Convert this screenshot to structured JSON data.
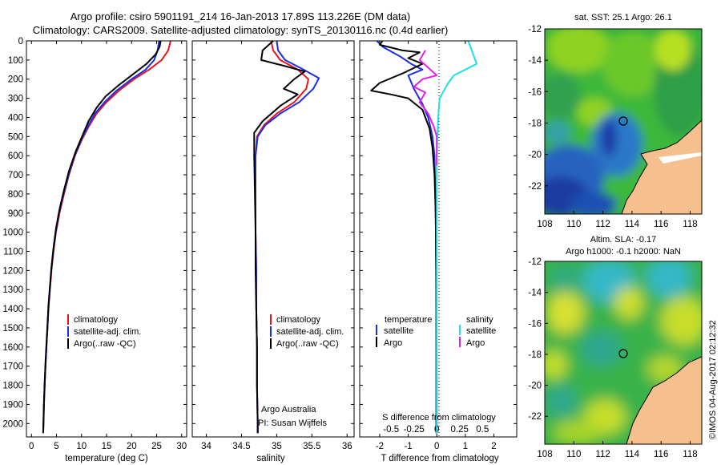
{
  "title": {
    "line1": "Argo profile: csiro 5901191_214 16-Jan-2013 17.89S 113.226E (DM data)",
    "line2": "Climatology: CARS2009. Satellite-adjusted climatology: synTS_20130116.nc (0.4d earlier)"
  },
  "colors": {
    "climatology": "#e8141b",
    "satellite": "#1a2ee8",
    "argo": "#000000",
    "sat_salinity": "#1ee0e8",
    "argo_salinity": "#e81ee8",
    "land": "#f5c08e"
  },
  "chart_data": [
    {
      "type": "line",
      "id": "temperature",
      "xlabel": "temperature (deg C)",
      "xlim": [
        -1,
        31
      ],
      "ylim": [
        2070,
        0
      ],
      "xticks": [
        0,
        5,
        10,
        15,
        20,
        25,
        30
      ],
      "yticks": [
        0,
        100,
        200,
        300,
        400,
        500,
        600,
        700,
        800,
        900,
        1000,
        1100,
        1200,
        1300,
        1400,
        1500,
        1600,
        1700,
        1800,
        1900,
        2000
      ],
      "legend": [
        "climatology",
        "satellite-adj. clim.",
        "Argo(..raw -QC)"
      ],
      "series": [
        {
          "name": "climatology",
          "color": "#e8141b",
          "points": [
            [
              27.8,
              0
            ],
            [
              27.3,
              50
            ],
            [
              26,
              100
            ],
            [
              23.5,
              150
            ],
            [
              20.5,
              200
            ],
            [
              17.5,
              260
            ],
            [
              15,
              320
            ],
            [
              13,
              380
            ],
            [
              11.4,
              450
            ],
            [
              10,
              520
            ],
            [
              8.7,
              600
            ],
            [
              7.5,
              700
            ],
            [
              6.5,
              800
            ],
            [
              5.6,
              900
            ],
            [
              4.9,
              1000
            ],
            [
              4.4,
              1100
            ],
            [
              4.0,
              1200
            ],
            [
              3.7,
              1300
            ],
            [
              3.4,
              1400
            ],
            [
              3.2,
              1500
            ],
            [
              3.0,
              1600
            ],
            [
              2.8,
              1700
            ],
            [
              2.65,
              1800
            ],
            [
              2.5,
              1900
            ],
            [
              2.4,
              2000
            ],
            [
              2.35,
              2050
            ]
          ]
        },
        {
          "name": "satellite-adj. clim.",
          "color": "#1a2ee8",
          "points": [
            [
              25.5,
              0
            ],
            [
              25.2,
              50
            ],
            [
              24.5,
              100
            ],
            [
              22.8,
              150
            ],
            [
              20,
              200
            ],
            [
              17,
              260
            ],
            [
              14.6,
              320
            ],
            [
              12.7,
              380
            ],
            [
              11.2,
              450
            ],
            [
              9.9,
              520
            ],
            [
              8.6,
              600
            ],
            [
              7.4,
              700
            ],
            [
              6.4,
              800
            ],
            [
              5.5,
              900
            ],
            [
              4.85,
              1000
            ],
            [
              4.35,
              1100
            ],
            [
              3.95,
              1200
            ],
            [
              3.65,
              1300
            ],
            [
              3.4,
              1400
            ],
            [
              3.2,
              1500
            ],
            [
              3.0,
              1600
            ],
            [
              2.8,
              1700
            ],
            [
              2.65,
              1800
            ],
            [
              2.5,
              1900
            ],
            [
              2.4,
              2000
            ],
            [
              2.35,
              2050
            ]
          ]
        },
        {
          "name": "Argo(..raw -QC)",
          "color": "#000000",
          "points": [
            [
              25.8,
              0
            ],
            [
              25.6,
              30
            ],
            [
              24.8,
              70
            ],
            [
              23,
              120
            ],
            [
              20.5,
              170
            ],
            [
              17.5,
              230
            ],
            [
              14.8,
              290
            ],
            [
              13,
              350
            ],
            [
              11.4,
              420
            ],
            [
              10.1,
              500
            ],
            [
              8.8,
              580
            ],
            [
              7.5,
              680
            ],
            [
              6.5,
              780
            ],
            [
              5.6,
              880
            ],
            [
              4.9,
              980
            ],
            [
              4.4,
              1080
            ],
            [
              4.0,
              1180
            ],
            [
              3.7,
              1280
            ],
            [
              3.4,
              1380
            ],
            [
              3.2,
              1480
            ],
            [
              3.0,
              1580
            ],
            [
              2.8,
              1680
            ],
            [
              2.65,
              1780
            ],
            [
              2.5,
              1880
            ],
            [
              2.4,
              1980
            ],
            [
              2.35,
              2050
            ]
          ]
        }
      ]
    },
    {
      "type": "line",
      "id": "salinity",
      "xlabel": "salinity",
      "xlim": [
        33.8,
        36.1
      ],
      "ylim": [
        2070,
        0
      ],
      "xticks": [
        34,
        34.5,
        35,
        35.5,
        36
      ],
      "legend": [
        "climatology",
        "satellite-adj. clim.",
        "Argo(..raw -QC)"
      ],
      "annotation": [
        "Argo Australia",
        "PI: Susan Wijffels"
      ],
      "series": [
        {
          "name": "climatology",
          "color": "#e8141b",
          "points": [
            [
              34.92,
              0
            ],
            [
              34.95,
              50
            ],
            [
              35.05,
              100
            ],
            [
              35.3,
              150
            ],
            [
              35.45,
              200
            ],
            [
              35.42,
              250
            ],
            [
              35.25,
              320
            ],
            [
              35.0,
              380
            ],
            [
              34.82,
              440
            ],
            [
              34.72,
              500
            ],
            [
              34.7,
              600
            ],
            [
              34.7,
              800
            ],
            [
              34.7,
              1000
            ],
            [
              34.71,
              1200
            ],
            [
              34.71,
              1400
            ],
            [
              34.72,
              1600
            ],
            [
              34.72,
              1800
            ],
            [
              34.73,
              2000
            ],
            [
              34.73,
              2050
            ]
          ]
        },
        {
          "name": "satellite-adj. clim.",
          "color": "#1a2ee8",
          "points": [
            [
              35.0,
              0
            ],
            [
              35.02,
              50
            ],
            [
              35.12,
              100
            ],
            [
              35.38,
              150
            ],
            [
              35.6,
              195
            ],
            [
              35.52,
              250
            ],
            [
              35.32,
              320
            ],
            [
              35.05,
              380
            ],
            [
              34.84,
              440
            ],
            [
              34.73,
              500
            ],
            [
              34.7,
              600
            ],
            [
              34.7,
              800
            ],
            [
              34.7,
              1000
            ],
            [
              34.71,
              1200
            ],
            [
              34.71,
              1400
            ],
            [
              34.72,
              1600
            ],
            [
              34.72,
              1800
            ],
            [
              34.73,
              2000
            ],
            [
              34.73,
              2050
            ]
          ]
        },
        {
          "name": "Argo(..raw -QC)",
          "color": "#000000",
          "points": [
            [
              34.95,
              0
            ],
            [
              34.8,
              50
            ],
            [
              34.78,
              100
            ],
            [
              35.1,
              130
            ],
            [
              35.4,
              160
            ],
            [
              35.25,
              200
            ],
            [
              35.1,
              250
            ],
            [
              35.3,
              280
            ],
            [
              35.05,
              340
            ],
            [
              34.8,
              420
            ],
            [
              34.68,
              480
            ],
            [
              34.68,
              600
            ],
            [
              34.69,
              800
            ],
            [
              34.7,
              1000
            ],
            [
              34.7,
              1200
            ],
            [
              34.71,
              1400
            ],
            [
              34.72,
              1600
            ],
            [
              34.72,
              1800
            ],
            [
              34.73,
              2000
            ],
            [
              34.73,
              2050
            ]
          ]
        }
      ]
    },
    {
      "type": "line",
      "id": "difference",
      "xlabel": "T difference from climatology",
      "xlabel_top": "S difference from climatology",
      "xlim": [
        -2.7,
        2.8
      ],
      "ylim": [
        2070,
        0
      ],
      "xticks_T": [
        -2,
        -1,
        0,
        1,
        2
      ],
      "xticks_S": [
        "-0.5",
        "-0.25",
        "0",
        "0.25",
        "0.5"
      ],
      "legend_temperature": {
        "title": "temperature",
        "items": [
          "satellite",
          "Argo"
        ]
      },
      "legend_salinity": {
        "title": "salinity",
        "items": [
          "satellite",
          "Argo"
        ]
      },
      "series": [
        {
          "name": "temperature satellite",
          "color": "#1a2ee8",
          "points": [
            [
              -2.1,
              0
            ],
            [
              -1.9,
              30
            ],
            [
              -1.3,
              80
            ],
            [
              -0.9,
              120
            ],
            [
              -0.5,
              150
            ],
            [
              -1.0,
              180
            ],
            [
              -0.8,
              250
            ],
            [
              -0.5,
              330
            ],
            [
              -0.3,
              400
            ],
            [
              -0.15,
              500
            ],
            [
              -0.08,
              600
            ],
            [
              -0.05,
              800
            ],
            [
              -0.03,
              1000
            ],
            [
              -0.02,
              1300
            ],
            [
              -0.02,
              1600
            ],
            [
              -0.02,
              2000
            ],
            [
              -0.02,
              2050
            ]
          ]
        },
        {
          "name": "temperature Argo",
          "color": "#000000",
          "points": [
            [
              -1.9,
              0
            ],
            [
              -2.0,
              20
            ],
            [
              -1.2,
              50
            ],
            [
              -0.6,
              60
            ],
            [
              -1.0,
              90
            ],
            [
              -0.5,
              120
            ],
            [
              -1.2,
              170
            ],
            [
              -2.0,
              220
            ],
            [
              -2.3,
              260
            ],
            [
              -1.6,
              280
            ],
            [
              -1.0,
              300
            ],
            [
              -0.5,
              360
            ],
            [
              -0.25,
              460
            ],
            [
              -0.15,
              560
            ],
            [
              -0.08,
              700
            ],
            [
              -0.04,
              900
            ],
            [
              -0.02,
              1200
            ],
            [
              -0.01,
              1500
            ],
            [
              0.0,
              1800
            ],
            [
              0.0,
              2050
            ]
          ]
        },
        {
          "name": "salinity satellite",
          "color": "#1ee0e8",
          "points": [
            [
              1.1,
              0
            ],
            [
              1.2,
              40
            ],
            [
              1.3,
              80
            ],
            [
              1.4,
              120
            ],
            [
              1.0,
              150
            ],
            [
              0.6,
              180
            ],
            [
              0.4,
              220
            ],
            [
              0.1,
              300
            ],
            [
              0.05,
              400
            ],
            [
              0.02,
              500
            ],
            [
              0.0,
              600
            ],
            [
              0.0,
              800
            ],
            [
              0.0,
              2050
            ]
          ]
        },
        {
          "name": "salinity Argo",
          "color": "#e81ee8",
          "points": [
            [
              -0.4,
              50
            ],
            [
              -0.6,
              100
            ],
            [
              -0.3,
              140
            ],
            [
              0.0,
              180
            ],
            [
              -0.5,
              200
            ],
            [
              -0.8,
              240
            ],
            [
              -0.4,
              270
            ],
            [
              -0.6,
              320
            ],
            [
              -0.3,
              380
            ],
            [
              -0.1,
              450
            ],
            [
              0.0,
              500
            ],
            [
              0.0,
              650
            ]
          ]
        }
      ]
    },
    {
      "type": "heatmap",
      "id": "sst_map",
      "title": "sat. SST: 25.1 Argo: 26.1",
      "xlim": [
        108,
        118.8
      ],
      "ylim": [
        -23.8,
        -12
      ],
      "xticks": [
        108,
        110,
        112,
        114,
        116,
        118
      ],
      "yticks": [
        -12,
        -14,
        -16,
        -18,
        -20,
        -22
      ],
      "marker": [
        113.226,
        -17.89
      ]
    },
    {
      "type": "heatmap",
      "id": "sla_map",
      "title_line1": "Altim. SLA: -0.17",
      "title_line2": "Argo h1000: -0.1 h2000: NaN",
      "xlim": [
        108,
        118.8
      ],
      "ylim": [
        -23.8,
        -12
      ],
      "xticks": [
        108,
        110,
        112,
        114,
        116,
        118
      ],
      "yticks": [
        -12,
        -14,
        -16,
        -18,
        -20,
        -22
      ],
      "marker": [
        113.226,
        -17.89
      ]
    }
  ],
  "footer": "©IMOS 04-Aug-2017 02:12:32"
}
